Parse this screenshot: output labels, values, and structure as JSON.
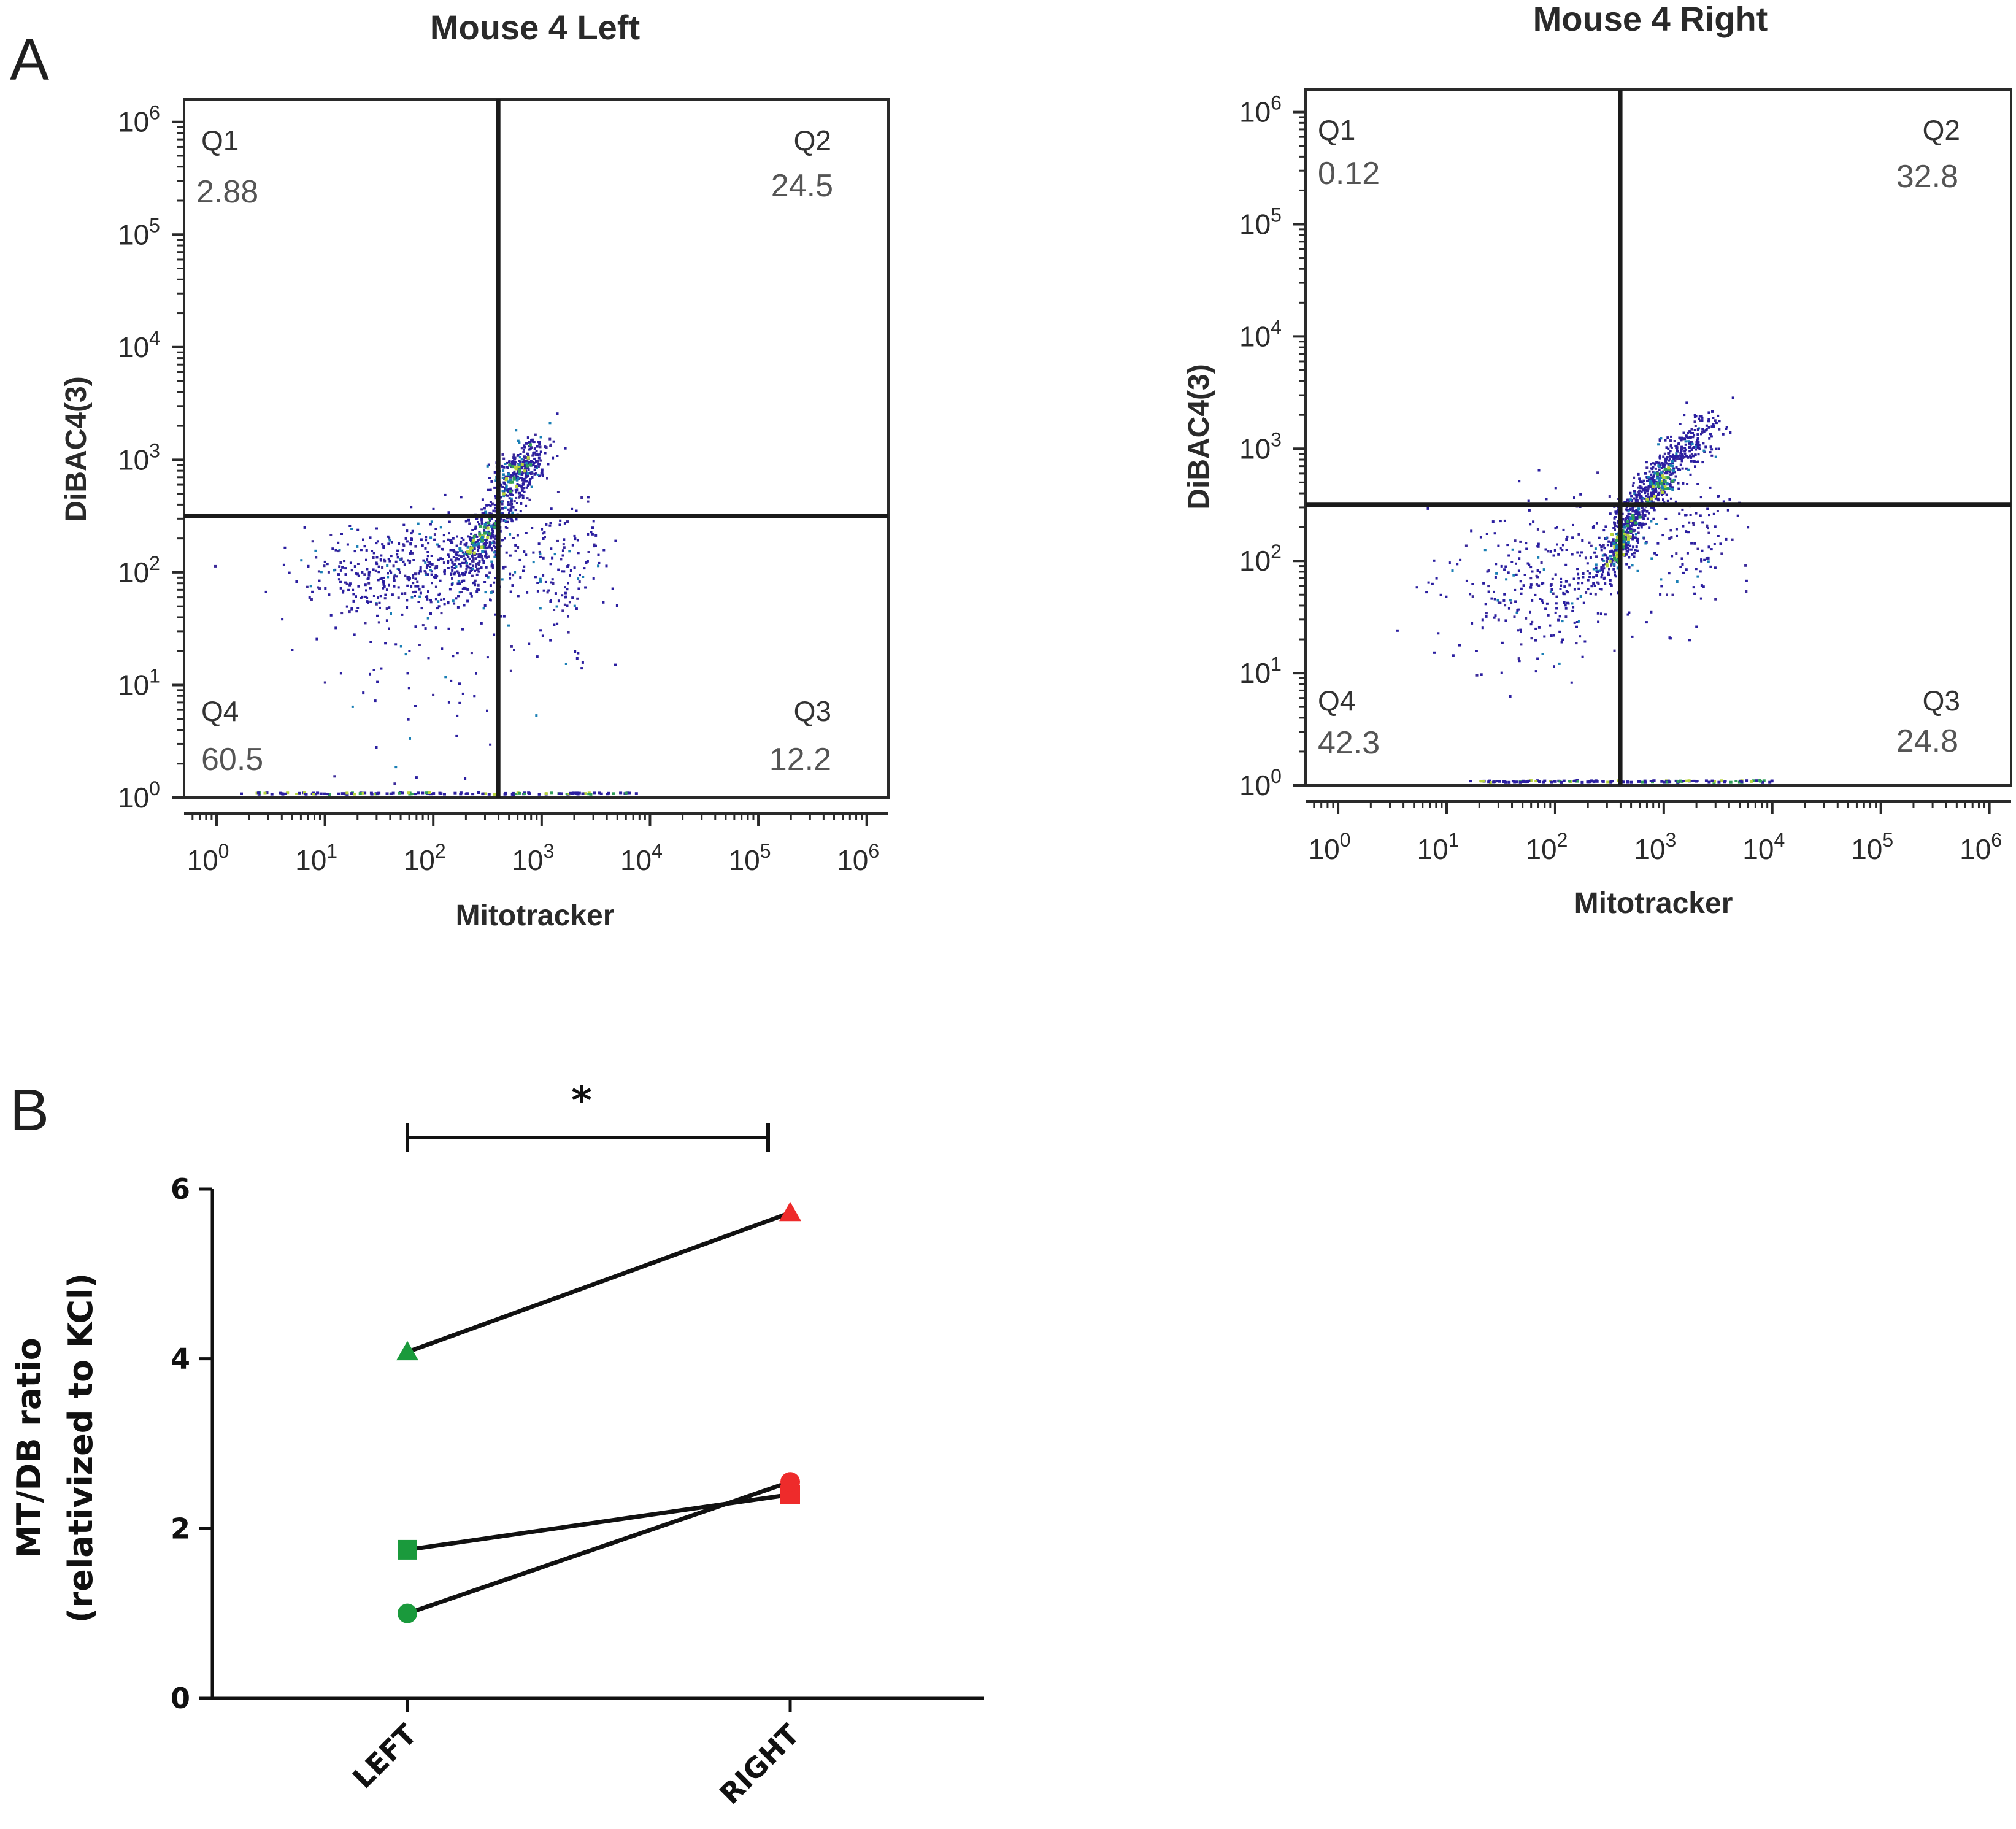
{
  "chart_data": [
    {
      "id": "panel-a-left",
      "panel_label": "A",
      "type": "scatter",
      "subtype": "flow-cytometry-density-dot-plot",
      "title": "Mouse 4 Left",
      "xlabel": "Mitotracker",
      "ylabel": "DiBAC4(3)",
      "x_scale": "log10",
      "y_scale": "log10",
      "xlim_exponent": [
        -0.3,
        6.2
      ],
      "ylim_exponent": [
        0,
        6.2
      ],
      "tick_base": "10",
      "x_ticks": [
        "0",
        "1",
        "2",
        "3",
        "4",
        "5",
        "6"
      ],
      "y_ticks": [
        "0",
        "1",
        "2",
        "3",
        "4",
        "5",
        "6"
      ],
      "gate_exponent": {
        "x": 2.6,
        "y": 2.5
      },
      "quadrants": [
        {
          "name": "Q1",
          "value": "2.88"
        },
        {
          "name": "Q2",
          "value": "24.5"
        },
        {
          "name": "Q3",
          "value": "12.2"
        },
        {
          "name": "Q4",
          "value": "60.5"
        }
      ],
      "populations": [
        {
          "cx": 1.9,
          "cy": 2.05,
          "sx": 0.55,
          "sy": 0.22,
          "n": 520,
          "rho": 0.1
        },
        {
          "cx": 2.55,
          "cy": 2.45,
          "sx": 0.2,
          "sy": 0.28,
          "n": 360,
          "rho": 0.85
        },
        {
          "cx": 2.8,
          "cy": 2.95,
          "sx": 0.14,
          "sy": 0.14,
          "n": 230,
          "rho": 0.6
        },
        {
          "cx": 3.2,
          "cy": 2.0,
          "sx": 0.18,
          "sy": 0.35,
          "n": 120,
          "rho": 0
        },
        {
          "cx": 2.0,
          "cy": 1.0,
          "sx": 0.5,
          "sy": 0.5,
          "n": 60,
          "rho": 0
        }
      ],
      "axis_events": {
        "y": 0,
        "x_from": 0.2,
        "x_to": 3.9,
        "n": 140
      },
      "dense_cores": [
        {
          "cx": 2.45,
          "cy": 2.35,
          "sx": 0.08,
          "sy": 0.1,
          "n": 45,
          "rho": 0.8
        },
        {
          "cx": 2.75,
          "cy": 2.9,
          "sx": 0.07,
          "sy": 0.08,
          "n": 30,
          "rho": 0.7
        }
      ],
      "palette": [
        "#2b1fa0",
        "#3d2c9a",
        "#1a7fb5",
        "#2f9e58",
        "#b8d43a"
      ]
    },
    {
      "id": "panel-a-right",
      "panel_label": "",
      "type": "scatter",
      "subtype": "flow-cytometry-density-dot-plot",
      "title": "Mouse 4 Right",
      "xlabel": "Mitotracker",
      "ylabel": "DiBAC4(3)",
      "x_scale": "log10",
      "y_scale": "log10",
      "xlim_exponent": [
        -0.3,
        6.2
      ],
      "ylim_exponent": [
        0,
        6.2
      ],
      "tick_base": "10",
      "x_ticks": [
        "0",
        "1",
        "2",
        "3",
        "4",
        "5",
        "6"
      ],
      "y_ticks": [
        "0",
        "1",
        "2",
        "3",
        "4",
        "5",
        "6"
      ],
      "gate_exponent": {
        "x": 2.6,
        "y": 2.5
      },
      "quadrants": [
        {
          "name": "Q1",
          "value": "0.12"
        },
        {
          "name": "Q2",
          "value": "32.8"
        },
        {
          "name": "Q3",
          "value": "24.8"
        },
        {
          "name": "Q4",
          "value": "42.3"
        }
      ],
      "populations": [
        {
          "cx": 1.9,
          "cy": 1.85,
          "sx": 0.45,
          "sy": 0.35,
          "n": 300,
          "rho": 0.1
        },
        {
          "cx": 2.65,
          "cy": 2.3,
          "sx": 0.16,
          "sy": 0.25,
          "n": 420,
          "rho": 0.8
        },
        {
          "cx": 2.95,
          "cy": 2.75,
          "sx": 0.18,
          "sy": 0.2,
          "n": 300,
          "rho": 0.8
        },
        {
          "cx": 3.3,
          "cy": 3.1,
          "sx": 0.14,
          "sy": 0.14,
          "n": 110,
          "rho": 0.7
        },
        {
          "cx": 3.3,
          "cy": 2.2,
          "sx": 0.2,
          "sy": 0.3,
          "n": 100,
          "rho": 0
        }
      ],
      "axis_events": {
        "y": 0,
        "x_from": 1.2,
        "x_to": 4.0,
        "n": 130
      },
      "dense_cores": [
        {
          "cx": 2.6,
          "cy": 2.2,
          "sx": 0.07,
          "sy": 0.12,
          "n": 55,
          "rho": 0.8
        },
        {
          "cx": 2.95,
          "cy": 2.7,
          "sx": 0.08,
          "sy": 0.1,
          "n": 45,
          "rho": 0.8
        }
      ],
      "palette": [
        "#2b1fa0",
        "#3d2c9a",
        "#1a7fb5",
        "#2f9e58",
        "#b8d43a"
      ]
    },
    {
      "id": "panel-b",
      "panel_label": "B",
      "type": "line",
      "subtype": "paired-before-after",
      "title": "",
      "xlabel": "",
      "ylabel_lines": [
        "MT/DB ratio",
        "(relativized to KCl)"
      ],
      "categories": [
        "LEFT",
        "RIGHT"
      ],
      "ylim": [
        0,
        6
      ],
      "y_ticks": [
        "0",
        "2",
        "4",
        "6"
      ],
      "series": [
        {
          "name": "triangle",
          "marker": "triangle",
          "values": [
            4.08,
            5.72
          ]
        },
        {
          "name": "square",
          "marker": "square",
          "values": [
            1.75,
            2.4
          ]
        },
        {
          "name": "circle",
          "marker": "circle",
          "values": [
            1.0,
            2.55
          ]
        }
      ],
      "category_colors": [
        "#1a9a3c",
        "#ee2b2b"
      ],
      "significance": {
        "label": "*",
        "from": 0,
        "to": 1
      }
    }
  ]
}
